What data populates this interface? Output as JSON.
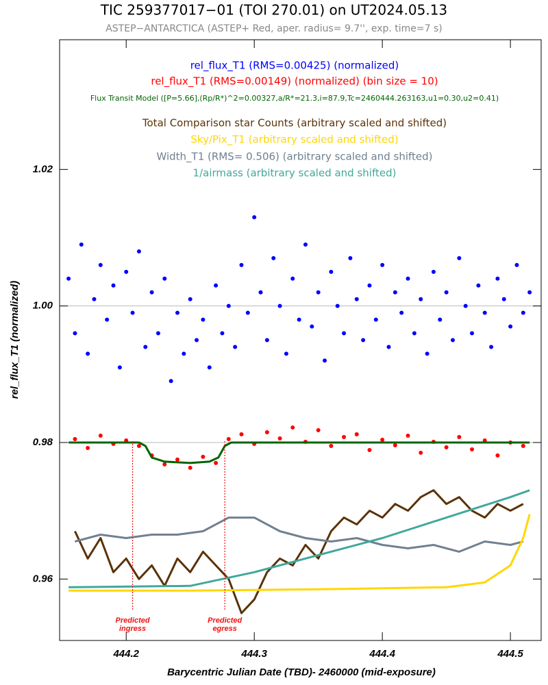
{
  "chart_data": {
    "type": "scatter",
    "title": "TIC 259377017−01 (TOI 270.01) on UT2024.05.13",
    "subtitle": "ASTEP−ANTARCTICA (ASTEP+ Red, aper. radius= 9.7'', exp. time=7 s)",
    "x_label": "Barycentric Julian Date (TBD)- 2460000 (mid-exposure)",
    "y_label": "rel_flux_T1 (normalized)",
    "xlim": [
      444.148,
      444.524
    ],
    "ylim": [
      0.951,
      1.039
    ],
    "xticks": [
      444.2,
      444.3,
      444.4,
      444.5
    ],
    "yticks": [
      0.96,
      0.98,
      {
        "value": 1,
        "label": "1.00"
      },
      1.02
    ],
    "reference_lines": [
      1,
      0.98
    ],
    "markers": [
      {
        "x": 444.205,
        "label": [
          "Predicted",
          "ingress"
        ],
        "color": "#ee1111"
      },
      {
        "x": 444.277,
        "label": [
          "Predicted",
          "egress"
        ],
        "color": "#ee1111"
      }
    ],
    "series": [
      {
        "name": "rel_flux_T1 (RMS=0.00425) (normalized)",
        "color": "#0000ff",
        "style": "scatter",
        "x": [
          444.155,
          444.16,
          444.165,
          444.17,
          444.175,
          444.18,
          444.185,
          444.19,
          444.195,
          444.2,
          444.205,
          444.21,
          444.215,
          444.22,
          444.225,
          444.23,
          444.235,
          444.24,
          444.245,
          444.25,
          444.255,
          444.26,
          444.265,
          444.27,
          444.275,
          444.28,
          444.285,
          444.29,
          444.295,
          444.3,
          444.305,
          444.31,
          444.315,
          444.32,
          444.325,
          444.33,
          444.335,
          444.34,
          444.345,
          444.35,
          444.355,
          444.36,
          444.365,
          444.37,
          444.375,
          444.38,
          444.385,
          444.39,
          444.395,
          444.4,
          444.405,
          444.41,
          444.415,
          444.42,
          444.425,
          444.43,
          444.435,
          444.44,
          444.445,
          444.45,
          444.455,
          444.46,
          444.465,
          444.47,
          444.475,
          444.48,
          444.485,
          444.49,
          444.495,
          444.5,
          444.505,
          444.51,
          444.515
        ],
        "values": [
          1.004,
          0.996,
          1.009,
          0.993,
          1.001,
          1.006,
          0.998,
          1.003,
          0.991,
          1.005,
          0.999,
          1.008,
          0.994,
          1.002,
          0.996,
          1.004,
          0.989,
          0.999,
          0.993,
          1.001,
          0.995,
          0.998,
          0.991,
          1.003,
          0.996,
          1.0,
          0.994,
          1.006,
          0.999,
          1.013,
          1.002,
          0.995,
          1.007,
          1.0,
          0.993,
          1.004,
          0.998,
          1.009,
          0.997,
          1.002,
          0.992,
          1.005,
          1.0,
          0.996,
          1.007,
          1.001,
          0.995,
          1.003,
          0.998,
          1.006,
          0.994,
          1.002,
          0.999,
          1.004,
          0.996,
          1.001,
          0.993,
          1.005,
          0.998,
          1.002,
          0.995,
          1.007,
          1.0,
          0.996,
          1.003,
          0.999,
          0.994,
          1.004,
          1.001,
          0.997,
          1.006,
          0.999,
          1.002
        ]
      },
      {
        "name": "rel_flux_T1 (RMS=0.00149) (normalized) (bin size = 10)",
        "color": "#ff0000",
        "style": "scatter",
        "x": [
          444.16,
          444.17,
          444.18,
          444.19,
          444.2,
          444.21,
          444.22,
          444.23,
          444.24,
          444.25,
          444.26,
          444.27,
          444.28,
          444.29,
          444.3,
          444.31,
          444.32,
          444.33,
          444.34,
          444.35,
          444.36,
          444.37,
          444.38,
          444.39,
          444.4,
          444.41,
          444.42,
          444.43,
          444.44,
          444.45,
          444.46,
          444.47,
          444.48,
          444.49,
          444.5,
          444.51
        ],
        "values": [
          0.9805,
          0.9792,
          0.981,
          0.9798,
          0.9803,
          0.9795,
          0.9781,
          0.9768,
          0.9775,
          0.9763,
          0.9779,
          0.977,
          0.9805,
          0.9812,
          0.9798,
          0.9815,
          0.9806,
          0.9822,
          0.9801,
          0.9818,
          0.9795,
          0.9808,
          0.9812,
          0.9789,
          0.9804,
          0.9796,
          0.981,
          0.9785,
          0.9801,
          0.9793,
          0.9808,
          0.979,
          0.9803,
          0.9781,
          0.98,
          0.9795
        ]
      },
      {
        "name": "Flux Transit Model ([P=5.66],(Rp/R*)^2=0.00327,a/R*=21.3,i=87.9,Tc=2460444.263163,u1=0.30,u2=0.41)",
        "color": "#006400",
        "style": "line",
        "x": [
          444.155,
          444.21,
          444.215,
          444.22,
          444.23,
          444.25,
          444.265,
          444.272,
          444.277,
          444.282,
          444.515
        ],
        "values": [
          0.98,
          0.98,
          0.9795,
          0.9778,
          0.9772,
          0.977,
          0.9772,
          0.9778,
          0.9795,
          0.98,
          0.98
        ]
      },
      {
        "name": "Total Comparison star Counts (arbitrary scaled and shifted)",
        "color": "#5a3208",
        "style": "line",
        "x": [
          444.16,
          444.17,
          444.18,
          444.19,
          444.2,
          444.21,
          444.22,
          444.23,
          444.24,
          444.25,
          444.26,
          444.27,
          444.28,
          444.29,
          444.3,
          444.31,
          444.32,
          444.33,
          444.34,
          444.35,
          444.36,
          444.37,
          444.38,
          444.39,
          444.4,
          444.41,
          444.42,
          444.43,
          444.44,
          444.45,
          444.46,
          444.47,
          444.48,
          444.49,
          444.5,
          444.51
        ],
        "values": [
          0.967,
          0.963,
          0.966,
          0.961,
          0.963,
          0.96,
          0.962,
          0.959,
          0.963,
          0.961,
          0.964,
          0.962,
          0.96,
          0.955,
          0.957,
          0.961,
          0.963,
          0.962,
          0.965,
          0.963,
          0.967,
          0.969,
          0.968,
          0.97,
          0.969,
          0.971,
          0.97,
          0.972,
          0.973,
          0.971,
          0.972,
          0.97,
          0.969,
          0.971,
          0.97,
          0.971
        ]
      },
      {
        "name": "Sky/Pix_T1 (arbitrary scaled and shifted)",
        "color": "#ffd700",
        "style": "line",
        "x": [
          444.155,
          444.25,
          444.35,
          444.45,
          444.48,
          444.5,
          444.51,
          444.515
        ],
        "values": [
          0.9583,
          0.9583,
          0.9585,
          0.9588,
          0.9595,
          0.962,
          0.966,
          0.9695
        ]
      },
      {
        "name": "Width_T1 (RMS= 0.506) (arbitrary scaled and shifted)",
        "color": "#708090",
        "style": "line",
        "x": [
          444.16,
          444.18,
          444.2,
          444.22,
          444.24,
          444.26,
          444.28,
          444.3,
          444.32,
          444.34,
          444.36,
          444.38,
          444.4,
          444.42,
          444.44,
          444.46,
          444.48,
          444.5,
          444.51
        ],
        "values": [
          0.9655,
          0.9665,
          0.966,
          0.9665,
          0.9665,
          0.967,
          0.969,
          0.969,
          0.967,
          0.966,
          0.9655,
          0.966,
          0.965,
          0.9645,
          0.965,
          0.964,
          0.9655,
          0.965,
          0.9655
        ]
      },
      {
        "name": "1/airmass (arbitrary scaled and shifted)",
        "color": "#40a89a",
        "style": "line",
        "x": [
          444.155,
          444.25,
          444.3,
          444.4,
          444.5,
          444.515
        ],
        "values": [
          0.9588,
          0.959,
          0.961,
          0.966,
          0.972,
          0.973
        ]
      }
    ]
  }
}
